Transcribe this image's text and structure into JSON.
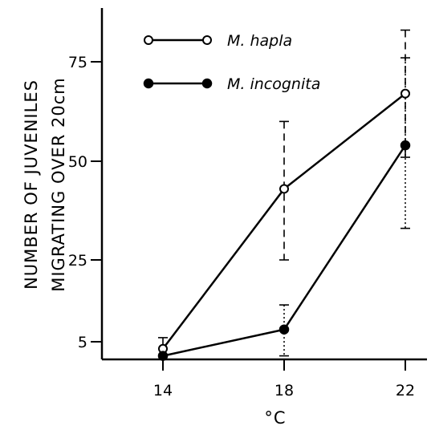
{
  "chart_data": {
    "type": "line",
    "title": "",
    "xlabel": "°C",
    "ylabel": [
      "NUMBER OF JUVENILES",
      "MIGRATING OVER 20cm"
    ],
    "x": [
      14,
      18,
      22
    ],
    "x_ticks": [
      "14",
      "18",
      "22"
    ],
    "y_ticks": [
      "5",
      "25",
      "50",
      "75"
    ],
    "ylim": [
      0,
      90
    ],
    "grid": false,
    "legend_position": "top-left",
    "series": [
      {
        "name": "M. hapla",
        "marker": "open-circle",
        "line_color": "#000000",
        "values": [
          3,
          43,
          67
        ],
        "error_low": [
          1,
          25,
          51
        ],
        "error_high": [
          6,
          60,
          83
        ],
        "error_style": "dashed"
      },
      {
        "name": "M. incognita",
        "marker": "filled-circle",
        "line_color": "#000000",
        "values": [
          1,
          8,
          54
        ],
        "error_low": [
          1,
          1,
          33
        ],
        "error_high": [
          1,
          14,
          76
        ],
        "error_style": "dotted"
      }
    ]
  }
}
